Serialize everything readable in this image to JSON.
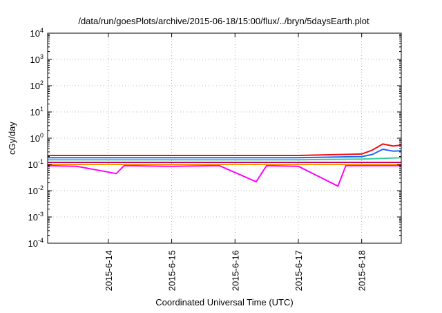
{
  "chart_data": {
    "type": "line",
    "title": "/data/run/goesPlots/archive/2015-06-18/15:00/flux/../bryn/5daysEarth.plot",
    "xlabel": "Coordinated Universal Time (UTC)",
    "ylabel": "cGy/day",
    "yscale": "log",
    "ylim": [
      0.0001,
      10000
    ],
    "xlim": [
      "2015-06-13T01:00",
      "2015-06-18T15:00"
    ],
    "grid": true,
    "x_ticks": [
      {
        "x": "2015-06-14T00:00",
        "label": "2015-6-14"
      },
      {
        "x": "2015-06-15T00:00",
        "label": "2015-6-15"
      },
      {
        "x": "2015-06-16T00:00",
        "label": "2015-6-16"
      },
      {
        "x": "2015-06-17T00:00",
        "label": "2015-6-17"
      },
      {
        "x": "2015-06-18T00:00",
        "label": "2015-6-18"
      }
    ],
    "y_ticks": [
      {
        "y": 0.0001,
        "base": "10",
        "exp": "-4"
      },
      {
        "y": 0.001,
        "base": "10",
        "exp": "-3"
      },
      {
        "y": 0.01,
        "base": "10",
        "exp": "-2"
      },
      {
        "y": 0.1,
        "base": "10",
        "exp": "-1"
      },
      {
        "y": 1,
        "base": "10",
        "exp": "0"
      },
      {
        "y": 10,
        "base": "10",
        "exp": "1"
      },
      {
        "y": 100,
        "base": "10",
        "exp": "2"
      },
      {
        "y": 1000,
        "base": "10",
        "exp": "3"
      },
      {
        "y": 10000,
        "base": "10",
        "exp": "4"
      }
    ],
    "series": [
      {
        "color": "#ff00ff",
        "points": [
          [
            "2015-06-13T01:00",
            0.09
          ],
          [
            "2015-06-13T12:00",
            0.085
          ],
          [
            "2015-06-14T03:00",
            0.045
          ],
          [
            "2015-06-14T06:00",
            0.09
          ],
          [
            "2015-06-15T00:00",
            0.085
          ],
          [
            "2015-06-15T18:00",
            0.09
          ],
          [
            "2015-06-16T08:00",
            0.022
          ],
          [
            "2015-06-16T12:00",
            0.09
          ],
          [
            "2015-06-17T00:00",
            0.085
          ],
          [
            "2015-06-17T15:00",
            0.015
          ],
          [
            "2015-06-17T18:00",
            0.09
          ],
          [
            "2015-06-18T12:00",
            0.09
          ],
          [
            "2015-06-18T15:00",
            0.09
          ]
        ]
      },
      {
        "color": "#ff9900",
        "points": [
          [
            "2015-06-13T01:00",
            0.1
          ],
          [
            "2015-06-14T00:00",
            0.1
          ],
          [
            "2015-06-15T00:00",
            0.1
          ],
          [
            "2015-06-16T00:00",
            0.1
          ],
          [
            "2015-06-17T00:00",
            0.1
          ],
          [
            "2015-06-18T00:00",
            0.1
          ],
          [
            "2015-06-18T15:00",
            0.1
          ]
        ]
      },
      {
        "color": "#cc0066",
        "points": [
          [
            "2015-06-13T01:00",
            0.12
          ],
          [
            "2015-06-14T00:00",
            0.12
          ],
          [
            "2015-06-15T00:00",
            0.12
          ],
          [
            "2015-06-16T00:00",
            0.12
          ],
          [
            "2015-06-17T00:00",
            0.12
          ],
          [
            "2015-06-18T00:00",
            0.12
          ],
          [
            "2015-06-18T15:00",
            0.12
          ]
        ]
      },
      {
        "color": "#33cc99",
        "points": [
          [
            "2015-06-13T01:00",
            0.15
          ],
          [
            "2015-06-14T00:00",
            0.15
          ],
          [
            "2015-06-15T00:00",
            0.15
          ],
          [
            "2015-06-16T00:00",
            0.15
          ],
          [
            "2015-06-17T00:00",
            0.15
          ],
          [
            "2015-06-18T00:00",
            0.16
          ],
          [
            "2015-06-18T08:00",
            0.17
          ],
          [
            "2015-06-18T15:00",
            0.18
          ]
        ]
      },
      {
        "color": "#1a66ff",
        "points": [
          [
            "2015-06-13T01:00",
            0.18
          ],
          [
            "2015-06-14T00:00",
            0.18
          ],
          [
            "2015-06-15T00:00",
            0.18
          ],
          [
            "2015-06-16T00:00",
            0.18
          ],
          [
            "2015-06-17T00:00",
            0.18
          ],
          [
            "2015-06-18T00:00",
            0.2
          ],
          [
            "2015-06-18T04:00",
            0.24
          ],
          [
            "2015-06-18T08:00",
            0.38
          ],
          [
            "2015-06-18T12:00",
            0.32
          ],
          [
            "2015-06-18T15:00",
            0.33
          ]
        ]
      },
      {
        "color": "#ee1111",
        "points": [
          [
            "2015-06-13T01:00",
            0.22
          ],
          [
            "2015-06-14T00:00",
            0.22
          ],
          [
            "2015-06-15T00:00",
            0.22
          ],
          [
            "2015-06-16T00:00",
            0.22
          ],
          [
            "2015-06-17T00:00",
            0.22
          ],
          [
            "2015-06-18T00:00",
            0.25
          ],
          [
            "2015-06-18T04:00",
            0.35
          ],
          [
            "2015-06-18T08:00",
            0.6
          ],
          [
            "2015-06-18T12:00",
            0.5
          ],
          [
            "2015-06-18T15:00",
            0.55
          ]
        ]
      }
    ]
  }
}
